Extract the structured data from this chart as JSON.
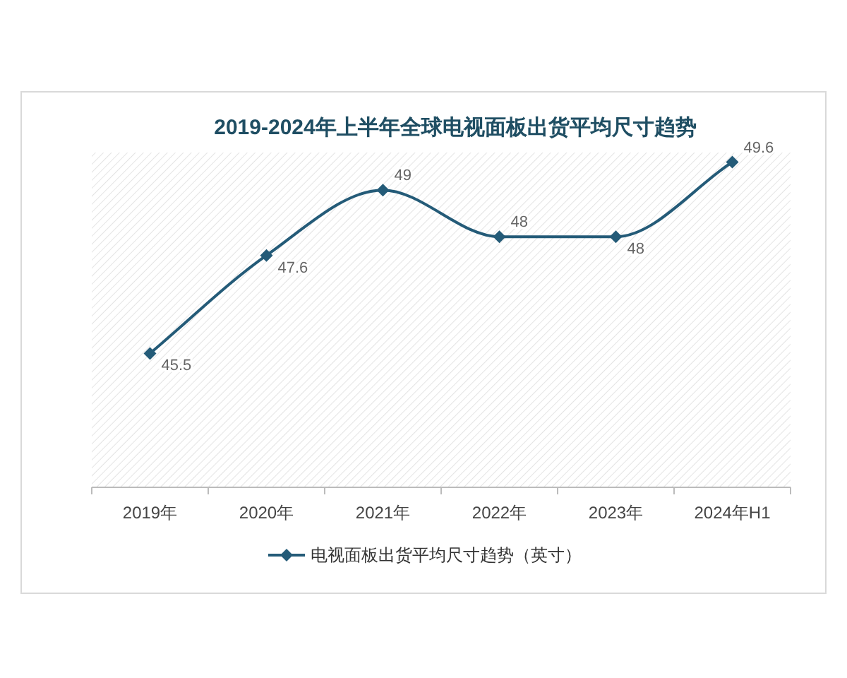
{
  "chart_data": {
    "type": "line",
    "title": "2019-2024年上半年全球电视面板出货平均尺寸趋势",
    "categories": [
      "2019年",
      "2020年",
      "2021年",
      "2022年",
      "2023年",
      "2024年H1"
    ],
    "series": [
      {
        "name": "电视面板出货平均尺寸趋势（英寸）",
        "color": "#245b78",
        "values": [
          45.5,
          47.6,
          49,
          48,
          48,
          49.6
        ]
      }
    ],
    "data_labels": true,
    "marker": "diamond",
    "legend": "bottom",
    "grid": false
  }
}
